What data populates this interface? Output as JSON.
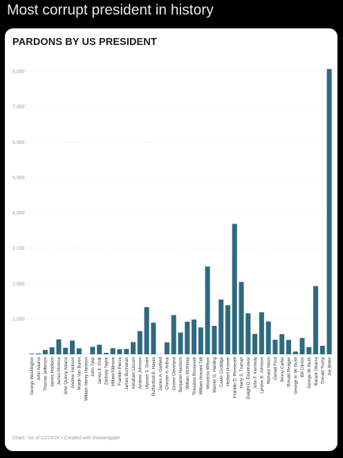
{
  "post": {
    "text": "Most corrupt president in history"
  },
  "chart_data": {
    "type": "bar",
    "title": "PARDONS BY US PRESIDENT",
    "footer": "Chart: *as of 12/15/24 • Created with Datawrapper",
    "bar_color": "#2e6a80",
    "ylim": [
      0,
      8000
    ],
    "yticks": [
      "8,000",
      "7,000",
      "6,000",
      "5,000",
      "4,000",
      "3,000",
      "2,000",
      "1,000"
    ],
    "ytick_values": [
      8000,
      7000,
      6000,
      5000,
      4000,
      3000,
      2000,
      1000
    ],
    "categories": [
      "George Washington",
      "John Adams",
      "Thomas Jefferson",
      "James Madison",
      "James Monroe",
      "John Quincy Adams",
      "Andrew Jackson",
      "Martin Van Buren",
      "William Henry Harrison",
      "John Tyler",
      "James K. Polk",
      "Zachary Taylor",
      "Millard Fillmore",
      "Franklin Pierce",
      "James Buchanan",
      "Abraham Lincoln",
      "Andrew Johnson",
      "Ulysses S. Grant",
      "Rutherford B. Hayes",
      "James A. Garfield",
      "Chester A. Arthur",
      "Grover Cleveland",
      "Benjamin Harrison",
      "William McKinley",
      "Theodore Roosevelt",
      "William Howard Taft",
      "Woodrow Wilson",
      "Warren G. Harding",
      "Calvin Coolidge",
      "Herbert Hoover",
      "Franklin D. Roosevelt",
      "Harry S. Truman",
      "Dwight D. Eisenhower",
      "John F. Kennedy",
      "Lyndon B. Johnson",
      "Richard Nixon",
      "Gerald Ford",
      "Jimmy Carter",
      "Ronald Reagan",
      "George H. W. Bush",
      "Bill Clinton",
      "George W. Bush",
      "Barack Obama",
      "Donald Trump",
      "Joe Biden"
    ],
    "values": [
      16,
      21,
      119,
      196,
      419,
      183,
      386,
      168,
      0,
      209,
      268,
      38,
      170,
      142,
      150,
      343,
      654,
      1332,
      893,
      0,
      337,
      1107,
      613,
      918,
      981,
      758,
      2480,
      800,
      1545,
      1385,
      3687,
      2044,
      1157,
      575,
      1187,
      926,
      409,
      566,
      406,
      77,
      459,
      200,
      1927,
      238,
      8064
    ]
  }
}
